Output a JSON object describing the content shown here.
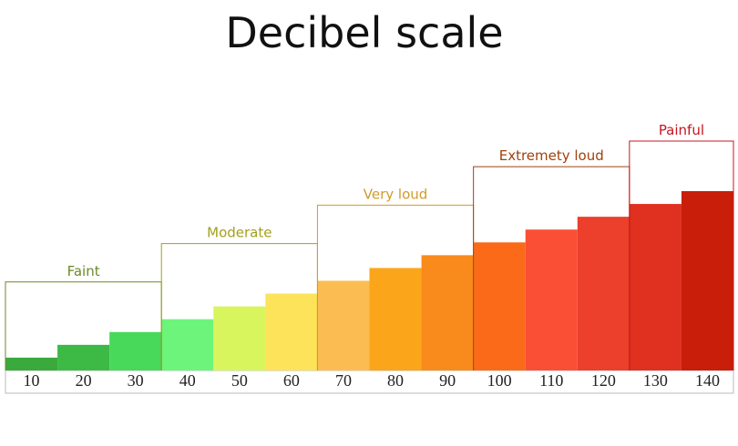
{
  "chart_data": {
    "type": "bar",
    "title": "Decibel scale",
    "values": [
      10,
      20,
      30,
      40,
      50,
      60,
      70,
      80,
      90,
      100,
      110,
      120,
      130,
      140
    ],
    "colors": [
      "#3aaa3c",
      "#3dba45",
      "#48d95a",
      "#6cf57a",
      "#d9f55e",
      "#fde35a",
      "#fbbd52",
      "#fba51a",
      "#f98a1c",
      "#fa6a18",
      "#fb4f35",
      "#ec3f2c",
      "#e0301f",
      "#c81e0a"
    ],
    "ylim": [
      0,
      140
    ],
    "groups": [
      {
        "name": "Faint",
        "span": 3,
        "color": "#6b8a2a"
      },
      {
        "name": "Moderate",
        "span": 3,
        "color": "#a3a01a"
      },
      {
        "name": "Very loud",
        "span": 3,
        "color": "#d29a2a"
      },
      {
        "name": "Extremety loud",
        "span": 3,
        "color": "#a0420e"
      },
      {
        "name": "Painful",
        "span": 2,
        "color": "#c8141e"
      }
    ]
  }
}
